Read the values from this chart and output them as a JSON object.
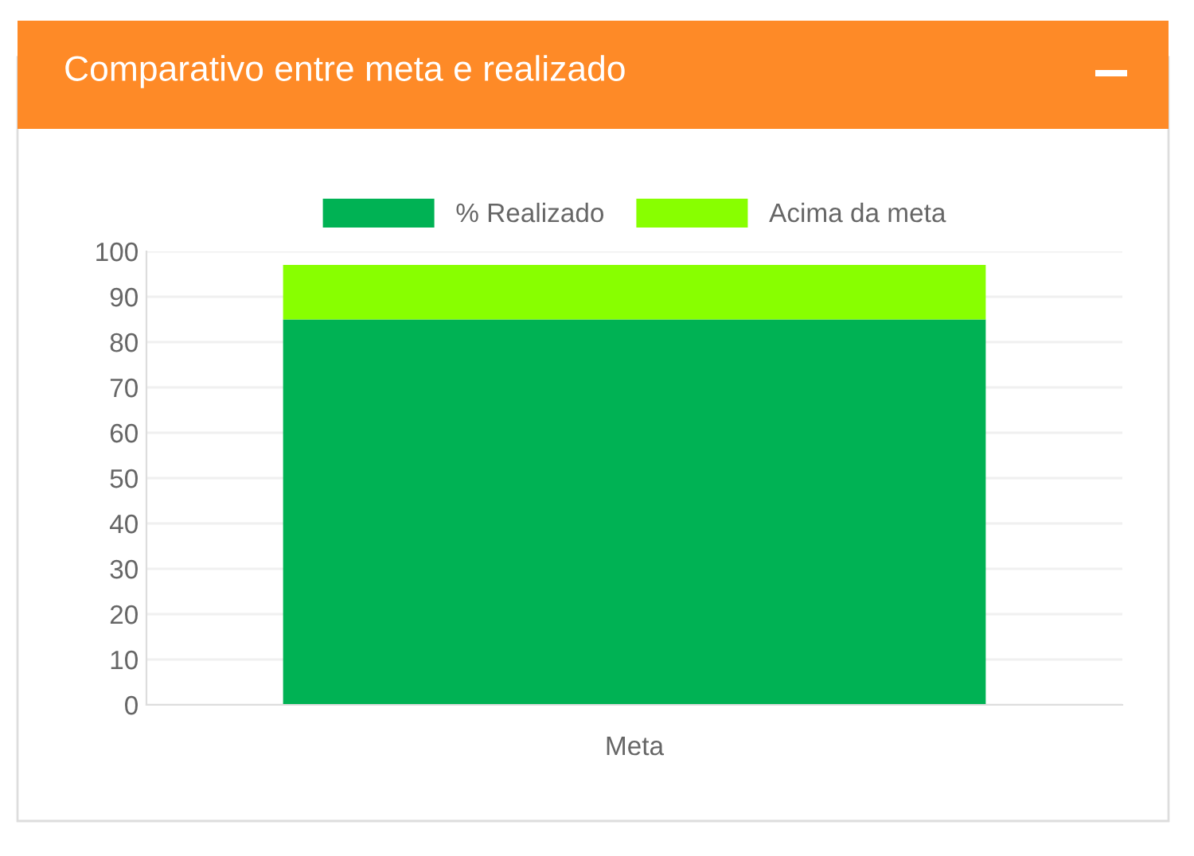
{
  "chart_data": {
    "type": "bar",
    "title": "Comparativo entre meta e realizado",
    "stacked": true,
    "categories": [
      "Meta"
    ],
    "series": [
      {
        "name": "% Realizado",
        "color": "#00b254",
        "values": [
          85
        ]
      },
      {
        "name": "Acima da meta",
        "color": "#88ff00",
        "values": [
          12
        ]
      }
    ],
    "ylim": [
      0,
      100
    ],
    "yticks": [
      0,
      10,
      20,
      30,
      40,
      50,
      60,
      70,
      80,
      90,
      100
    ],
    "grid": "y",
    "legend": "top"
  }
}
